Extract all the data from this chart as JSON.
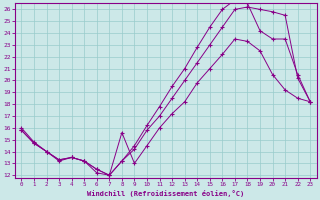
{
  "xlabel": "Windchill (Refroidissement éolien,°C)",
  "bg_color": "#cce8e8",
  "line_color": "#880088",
  "xlim_min": -0.5,
  "xlim_max": 23.5,
  "ylim_min": 11.8,
  "ylim_max": 26.5,
  "xticks": [
    0,
    1,
    2,
    3,
    4,
    5,
    6,
    7,
    8,
    9,
    10,
    11,
    12,
    13,
    14,
    15,
    16,
    17,
    18,
    19,
    20,
    21,
    22,
    23
  ],
  "yticks": [
    12,
    13,
    14,
    15,
    16,
    17,
    18,
    19,
    20,
    21,
    22,
    23,
    24,
    25,
    26
  ],
  "line1_x": [
    0,
    1,
    2,
    3,
    4,
    5,
    6,
    7,
    8,
    9,
    10,
    11,
    12,
    13,
    14,
    15,
    16,
    17,
    18,
    19,
    20,
    21,
    22,
    23
  ],
  "line1_y": [
    16.0,
    14.8,
    14.0,
    13.2,
    13.5,
    13.2,
    12.2,
    12.0,
    15.6,
    13.0,
    14.5,
    16.0,
    17.2,
    18.2,
    19.8,
    21.0,
    22.2,
    23.5,
    23.3,
    22.5,
    20.5,
    19.2,
    18.5,
    18.2
  ],
  "line2_x": [
    0,
    1,
    2,
    3,
    4,
    5,
    6,
    7,
    8,
    9,
    10,
    11,
    12,
    13,
    14,
    15,
    16,
    17,
    18,
    19,
    20,
    21,
    22,
    23
  ],
  "line2_y": [
    15.8,
    14.7,
    14.0,
    13.3,
    13.5,
    13.2,
    12.5,
    12.0,
    13.2,
    14.2,
    15.8,
    17.0,
    18.5,
    20.0,
    21.5,
    23.0,
    24.5,
    26.0,
    26.2,
    26.0,
    25.8,
    25.5,
    20.2,
    18.2
  ],
  "line3_x": [
    0,
    1,
    2,
    3,
    4,
    5,
    6,
    7,
    8,
    9,
    10,
    11,
    12,
    13,
    14,
    15,
    16,
    17,
    18,
    19,
    20,
    21,
    22,
    23
  ],
  "line3_y": [
    15.8,
    14.7,
    14.0,
    13.3,
    13.5,
    13.2,
    12.5,
    12.0,
    13.2,
    14.5,
    16.2,
    17.8,
    19.5,
    21.0,
    22.8,
    24.5,
    26.0,
    26.8,
    26.5,
    24.2,
    23.5,
    23.5,
    20.5,
    18.2
  ]
}
